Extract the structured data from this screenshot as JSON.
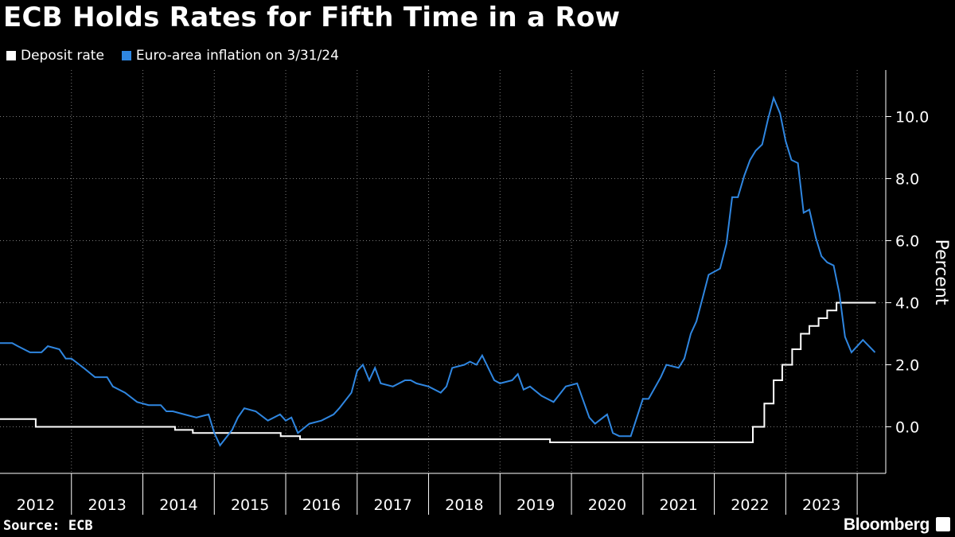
{
  "title": "ECB Holds Rates for Fifth Time in a Row",
  "source": "Source: ECB",
  "brand": "Bloomberg",
  "colors": {
    "deposit": "#ffffff",
    "inflation": "#2f86e0",
    "grid": "#7a7a7a"
  },
  "chart_data": {
    "type": "line",
    "title": "ECB Holds Rates for Fifth Time in a Row",
    "ylabel": "Percent",
    "ylim": [
      -1.5,
      11.5
    ],
    "yticks": [
      0.0,
      2.0,
      4.0,
      6.0,
      8.0,
      10.0
    ],
    "xlim": [
      2012.0,
      2024.4
    ],
    "xtick_labels": [
      "2012",
      "2013",
      "2014",
      "2015",
      "2016",
      "2017",
      "2018",
      "2019",
      "2020",
      "2021",
      "2022",
      "2023"
    ],
    "grid": true,
    "legend_position": "top-left",
    "series": [
      {
        "name": "Deposit rate",
        "step": true,
        "x": [
          2012.0,
          2012.5,
          2014.45,
          2014.7,
          2015.93,
          2016.2,
          2019.7,
          2022.54,
          2022.7,
          2022.83,
          2022.95,
          2023.09,
          2023.21,
          2023.33,
          2023.46,
          2023.58,
          2023.71,
          2024.26
        ],
        "values": [
          0.25,
          0.0,
          -0.1,
          -0.2,
          -0.3,
          -0.4,
          -0.5,
          0.0,
          0.75,
          1.5,
          2.0,
          2.5,
          3.0,
          3.25,
          3.5,
          3.75,
          4.0,
          4.0
        ]
      },
      {
        "name": "Euro-area inflation on 3/31/24",
        "x": [
          2012.0,
          2012.17,
          2012.25,
          2012.42,
          2012.58,
          2012.67,
          2012.83,
          2012.92,
          2013.0,
          2013.17,
          2013.33,
          2013.5,
          2013.58,
          2013.75,
          2013.92,
          2014.08,
          2014.25,
          2014.33,
          2014.42,
          2014.58,
          2014.75,
          2014.92,
          2015.0,
          2015.08,
          2015.25,
          2015.33,
          2015.42,
          2015.58,
          2015.75,
          2015.92,
          2016.0,
          2016.08,
          2016.17,
          2016.33,
          2016.5,
          2016.67,
          2016.75,
          2016.92,
          2017.0,
          2017.08,
          2017.17,
          2017.25,
          2017.33,
          2017.5,
          2017.67,
          2017.75,
          2017.83,
          2018.0,
          2018.17,
          2018.25,
          2018.33,
          2018.5,
          2018.58,
          2018.67,
          2018.75,
          2018.92,
          2019.0,
          2019.17,
          2019.25,
          2019.33,
          2019.42,
          2019.58,
          2019.75,
          2019.92,
          2020.08,
          2020.25,
          2020.33,
          2020.5,
          2020.58,
          2020.67,
          2020.83,
          2021.0,
          2021.08,
          2021.25,
          2021.33,
          2021.5,
          2021.58,
          2021.67,
          2021.75,
          2021.83,
          2021.92,
          2022.08,
          2022.17,
          2022.25,
          2022.33,
          2022.42,
          2022.5,
          2022.58,
          2022.67,
          2022.75,
          2022.83,
          2022.92,
          2023.0,
          2023.08,
          2023.17,
          2023.25,
          2023.33,
          2023.42,
          2023.5,
          2023.58,
          2023.67,
          2023.75,
          2023.83,
          2023.92,
          2024.08,
          2024.25
        ],
        "values": [
          2.7,
          2.7,
          2.6,
          2.4,
          2.4,
          2.6,
          2.5,
          2.2,
          2.2,
          1.9,
          1.6,
          1.6,
          1.3,
          1.1,
          0.8,
          0.7,
          0.7,
          0.5,
          0.5,
          0.4,
          0.3,
          0.4,
          -0.2,
          -0.6,
          -0.1,
          0.3,
          0.6,
          0.5,
          0.2,
          0.4,
          0.2,
          0.3,
          -0.2,
          0.1,
          0.2,
          0.4,
          0.6,
          1.1,
          1.8,
          2.0,
          1.5,
          1.9,
          1.4,
          1.3,
          1.5,
          1.5,
          1.4,
          1.3,
          1.1,
          1.3,
          1.9,
          2.0,
          2.1,
          2.0,
          2.3,
          1.5,
          1.4,
          1.5,
          1.7,
          1.2,
          1.3,
          1.0,
          0.8,
          1.3,
          1.4,
          0.3,
          0.1,
          0.4,
          -0.2,
          -0.3,
          -0.3,
          0.9,
          0.9,
          1.6,
          2.0,
          1.9,
          2.2,
          3.0,
          3.4,
          4.1,
          4.9,
          5.1,
          5.9,
          7.4,
          7.4,
          8.1,
          8.6,
          8.9,
          9.1,
          9.9,
          10.6,
          10.1,
          9.2,
          8.6,
          8.5,
          6.9,
          7.0,
          6.1,
          5.5,
          5.3,
          5.2,
          4.3,
          2.9,
          2.4,
          2.8,
          2.4
        ]
      }
    ]
  }
}
